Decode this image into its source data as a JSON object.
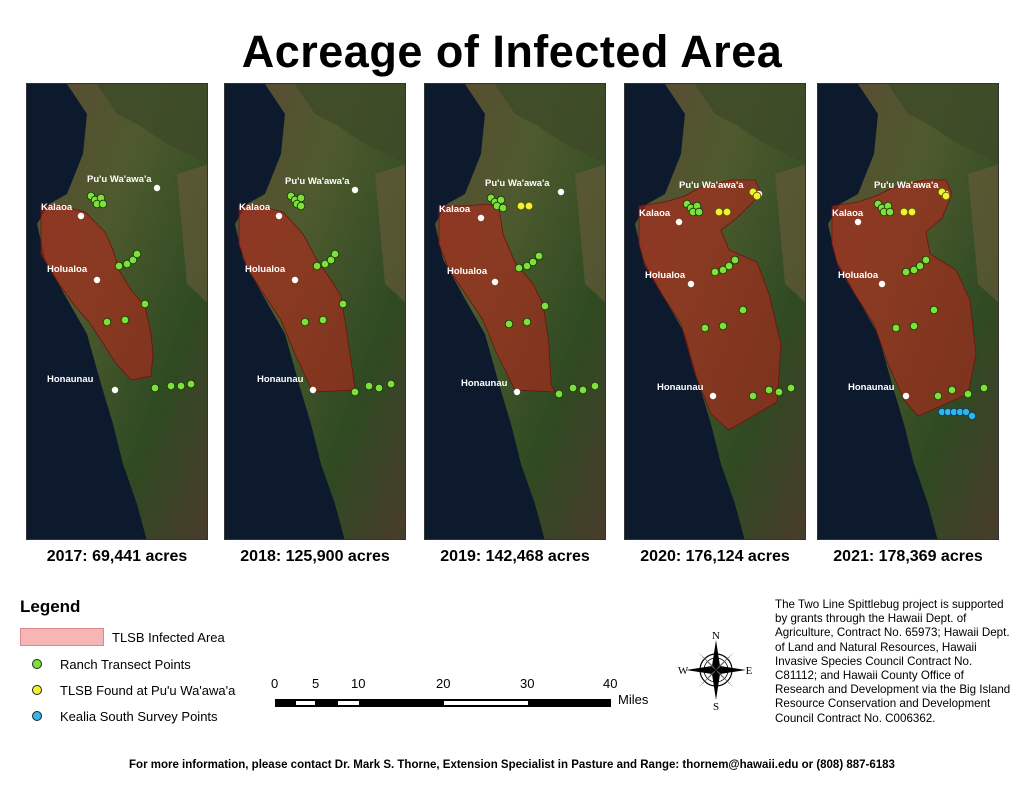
{
  "title": "Acreage of Infected Area",
  "place_labels": [
    "Pu'u Wa'awa'a",
    "Kalaoa",
    "Holualoa",
    "Honaunau"
  ],
  "panels": [
    {
      "year": "2017",
      "caption": "2017: 69,441 acres",
      "yellow": 0,
      "blue": 0
    },
    {
      "year": "2018",
      "caption": "2018: 125,900 acres",
      "yellow": 0,
      "blue": 0
    },
    {
      "year": "2019",
      "caption": "2019: 142,468 acres",
      "yellow": 2,
      "blue": 0
    },
    {
      "year": "2020",
      "caption": "2020: 176,124 acres",
      "yellow": 4,
      "blue": 0
    },
    {
      "year": "2021",
      "caption": "2021: 178,369 acres",
      "yellow": 4,
      "blue": 6
    }
  ],
  "legend": {
    "title": "Legend",
    "items": [
      {
        "label": "TLSB Infected Area",
        "color": "#f6b6b6"
      },
      {
        "label": "Ranch Transect Points",
        "color": "#7ee03a"
      },
      {
        "label": "TLSB Found at Pu'u Wa'awa'a",
        "color": "#f4f230"
      },
      {
        "label": "Kealia South Survey Points",
        "color": "#2fb6ea"
      }
    ]
  },
  "scale_bar": {
    "ticks": [
      "0",
      "5",
      "10",
      "20",
      "30",
      "40"
    ],
    "unit": "Miles"
  },
  "compass": {
    "n": "N",
    "s": "S",
    "e": "E",
    "w": "W"
  },
  "funding_text": "The Two Line Spittlebug project is supported by grants through the Hawaii Dept. of Agriculture, Contract No. 65973; Hawaii Dept. of Land and Natural Resources, Hawaii Invasive Species Council Contract No. C81112; and Hawaii County Office of Research and Development via the Big Island Resource Conservation and Development Council Contract No. C006362.",
  "footer": "For more information, please contact Dr. Mark S. Thorne, Extension Specialist in Pasture and Range: thornem@hawaii.edu or (808) 887-6183"
}
